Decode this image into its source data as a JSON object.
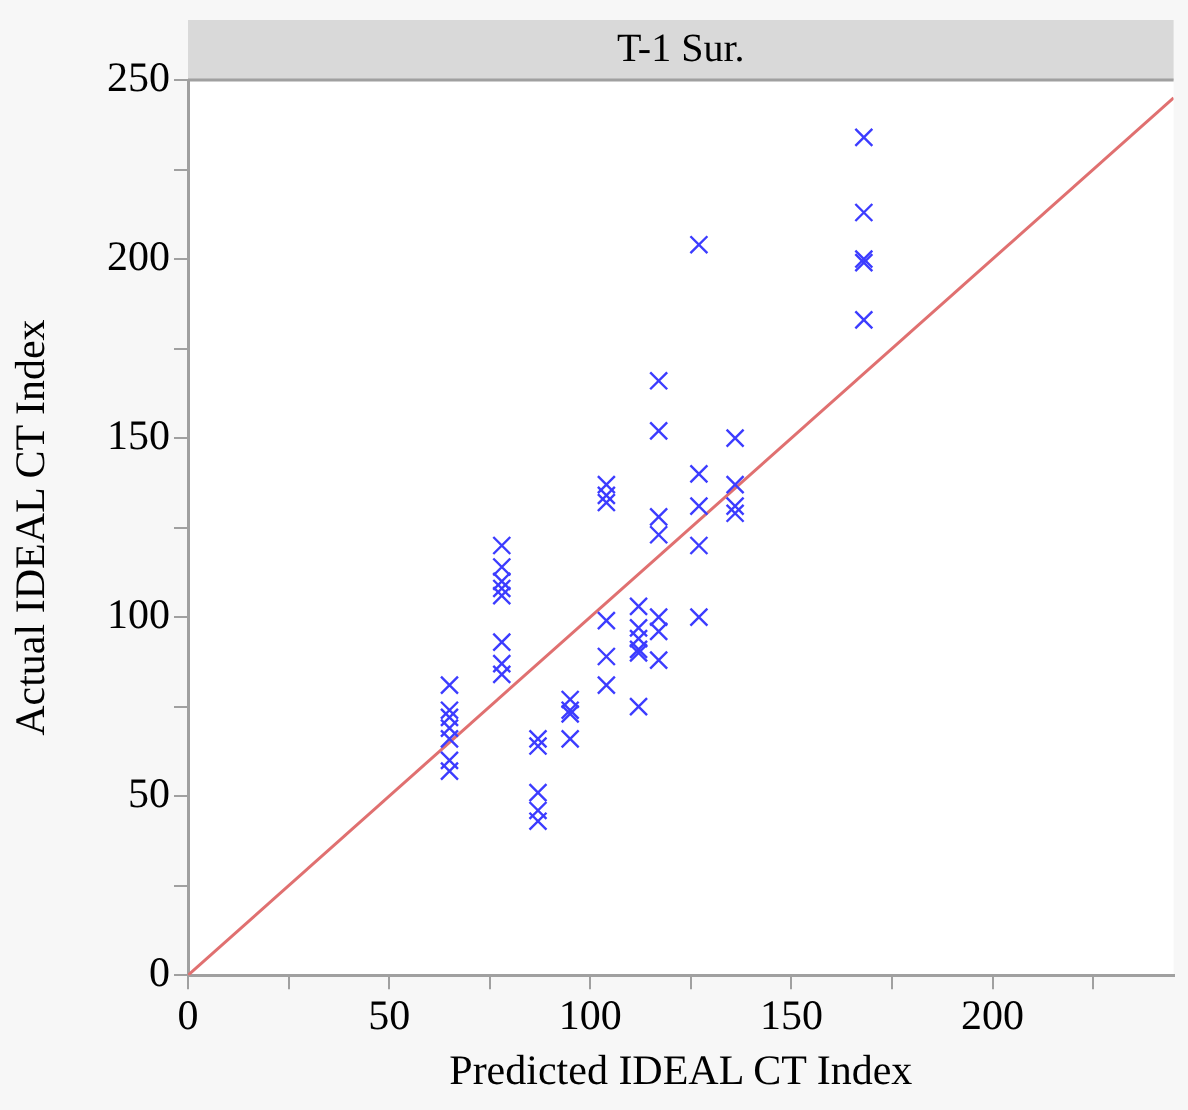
{
  "chart_data": {
    "type": "scatter",
    "title": "T-1 Sur.",
    "xlabel": "Predicted IDEAL CT Index",
    "ylabel": "Actual IDEAL CT Index",
    "xlim": [
      0,
      245
    ],
    "ylim": [
      0,
      250
    ],
    "xticks": [
      0,
      {
        "value": 25,
        "label": null
      },
      50,
      {
        "value": 75,
        "label": null
      },
      100,
      {
        "value": 125,
        "label": null
      },
      150,
      {
        "value": 175,
        "label": null
      },
      200,
      {
        "value": 225,
        "label": null
      }
    ],
    "yticks": [
      0,
      {
        "value": 25,
        "label": null
      },
      50,
      {
        "value": 75,
        "label": null
      },
      100,
      {
        "value": 125,
        "label": null
      },
      150,
      {
        "value": 175,
        "label": null
      },
      200,
      {
        "value": 225,
        "label": null
      },
      250
    ],
    "grid": false,
    "legend": false,
    "marker": "cross",
    "series": [
      {
        "color": "#3c3cff",
        "x": [
          65,
          65,
          65,
          65,
          65,
          65,
          65,
          78,
          78,
          78,
          78,
          78,
          78,
          78,
          78,
          87,
          87,
          87,
          87,
          87,
          95,
          95,
          95,
          95,
          104,
          104,
          104,
          104,
          104,
          104,
          112,
          112,
          112,
          112,
          112,
          112,
          117,
          117,
          117,
          117,
          117,
          117,
          117,
          127,
          127,
          127,
          127,
          127,
          136,
          136,
          136,
          136,
          168,
          168,
          168,
          168,
          168
        ],
        "values": [
          81,
          74,
          72,
          69,
          66,
          60,
          57,
          120,
          114,
          110,
          108,
          106,
          93,
          87,
          84,
          66,
          64,
          51,
          46,
          43,
          77,
          74,
          73,
          66,
          137,
          134,
          132,
          99,
          89,
          81,
          103,
          97,
          94,
          91,
          90,
          75,
          166,
          152,
          128,
          123,
          100,
          96,
          88,
          204,
          140,
          131,
          120,
          100,
          150,
          137,
          131,
          129,
          234,
          213,
          200,
          199,
          183
        ]
      },
      {
        "type": "line",
        "color": "#e07070",
        "x": [
          0,
          245
        ],
        "values": [
          0,
          245
        ],
        "marker": "none"
      }
    ]
  }
}
